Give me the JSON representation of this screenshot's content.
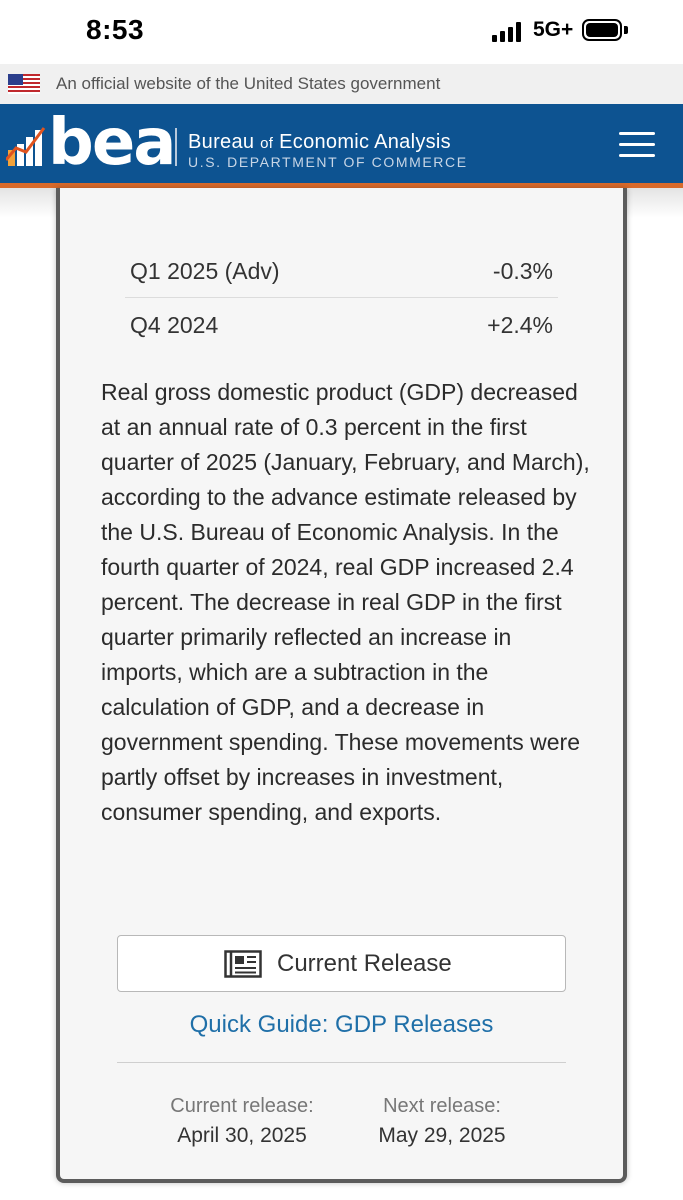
{
  "status_bar": {
    "time": "8:53",
    "network": "5G+",
    "battery_level": 1.0
  },
  "gov_banner": {
    "flag_icon": "us-flag-icon",
    "text": "An official website of the United States government"
  },
  "header": {
    "logo_text": "bea",
    "org_name_1": "Bureau",
    "org_name_of": "of",
    "org_name_2": "Economic Analysis",
    "department": "U.S. DEPARTMENT OF COMMERCE",
    "menu_icon": "hamburger-menu-icon",
    "colors": {
      "header_bg": "#0d5391",
      "accent_stripe": "#d86a2b"
    }
  },
  "gdp_table": {
    "rows": [
      {
        "label": "Q1 2025 (Adv)",
        "value": "-0.3%"
      },
      {
        "label": "Q4 2024",
        "value": "+2.4%"
      }
    ]
  },
  "summary": "Real gross domestic product (GDP) decreased at an annual rate of 0.3 percent in the first quarter of 2025 (January, February, and March), according to the advance estimate released by the U.S. Bureau of Economic Analysis. In the fourth quarter of 2024, real GDP increased 2.4 percent. The decrease in real GDP in the first quarter primarily reflected an increase in imports, which are a subtraction in the calculation of GDP, and a decrease in government spending. These movements were partly offset by increases in investment, consumer spending, and exports.",
  "actions": {
    "current_release_icon": "newspaper-icon",
    "current_release_label": "Current Release",
    "quick_guide_link": "Quick Guide: GDP Releases",
    "link_color": "#1f6fa8"
  },
  "release_dates": {
    "current_label": "Current release:",
    "current_date": "April 30, 2025",
    "next_label": "Next release:",
    "next_date": "May 29, 2025"
  }
}
